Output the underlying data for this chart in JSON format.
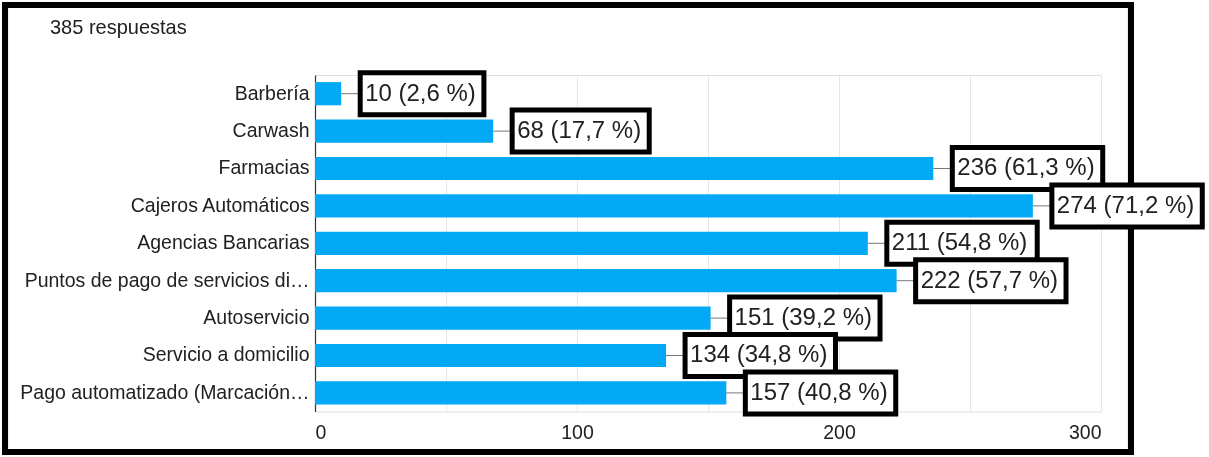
{
  "chart_data": {
    "type": "bar",
    "orientation": "horizontal",
    "title": "385 respuestas",
    "categories": [
      "Barbería",
      "Carwash",
      "Farmacias",
      "Cajeros Automáticos",
      "Agencias Bancarias",
      "Puntos de pago de servicios di…",
      "Autoservicio",
      "Servicio a domicilio",
      "Pago automatizado (Marcación…"
    ],
    "values": [
      10,
      68,
      236,
      274,
      211,
      222,
      151,
      134,
      157
    ],
    "value_labels": [
      "10 (2,6 %)",
      "68 (17,7 %)",
      "236 (61,3 %)",
      "274 (71,2 %)",
      "211 (54,8 %)",
      "222 (57,7 %)",
      "151 (39,2 %)",
      "134 (34,8 %)",
      "157 (40,8 %)"
    ],
    "color": "#03a9f4",
    "xlim": [
      0,
      300
    ],
    "xticks": [
      0,
      {
        "value": 50,
        "label": null
      },
      100,
      {
        "value": 150,
        "label": null
      },
      200,
      {
        "value": 250,
        "label": null
      },
      300
    ],
    "grid": "x"
  }
}
